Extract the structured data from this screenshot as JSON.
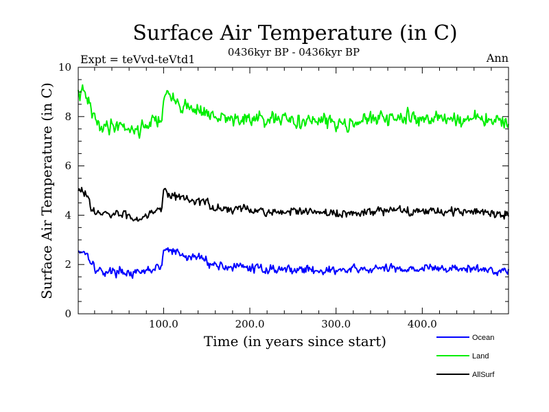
{
  "chart_data": {
    "type": "line",
    "title": "Surface Air Temperature (in C)",
    "subtitle": "0436kyr BP - 0436kyr BP",
    "experiment_label": "Expt = teVvd-teVtd1",
    "period_label": "Ann",
    "xlabel": "Time (in years since start)",
    "ylabel": "Surface Air Temperature (in C)",
    "xlim": [
      1,
      500
    ],
    "ylim": [
      0,
      10
    ],
    "x_ticks": [
      100,
      200,
      300,
      400
    ],
    "x_tick_labels": [
      "100.0",
      "200.0",
      "300.0",
      "400.0"
    ],
    "y_ticks": [
      0,
      2,
      4,
      6,
      8,
      10
    ],
    "y_tick_labels": [
      "0",
      "2",
      "4",
      "6",
      "8",
      "10"
    ],
    "grid": false,
    "legend_position": "bottom-right",
    "series": [
      {
        "name": "Ocean",
        "color": "#0000ff",
        "anchors": [
          [
            1,
            2.55
          ],
          [
            8,
            2.55
          ],
          [
            14,
            2.3
          ],
          [
            22,
            1.75
          ],
          [
            35,
            1.7
          ],
          [
            50,
            1.75
          ],
          [
            62,
            1.65
          ],
          [
            70,
            1.6
          ],
          [
            85,
            1.8
          ],
          [
            98,
            1.9
          ],
          [
            100,
            2.6
          ],
          [
            110,
            2.55
          ],
          [
            125,
            2.3
          ],
          [
            140,
            2.3
          ],
          [
            150,
            2.2
          ],
          [
            155,
            2.0
          ],
          [
            180,
            1.9
          ],
          [
            220,
            1.82
          ],
          [
            260,
            1.8
          ],
          [
            300,
            1.75
          ],
          [
            350,
            1.82
          ],
          [
            400,
            1.85
          ],
          [
            450,
            1.82
          ],
          [
            500,
            1.75
          ]
        ],
        "noise": 0.12,
        "seed": 17
      },
      {
        "name": "Land",
        "color": "#00ee00",
        "anchors": [
          [
            1,
            8.9
          ],
          [
            8,
            8.95
          ],
          [
            14,
            8.5
          ],
          [
            22,
            7.7
          ],
          [
            35,
            7.6
          ],
          [
            50,
            7.7
          ],
          [
            62,
            7.5
          ],
          [
            70,
            7.45
          ],
          [
            85,
            7.8
          ],
          [
            98,
            7.9
          ],
          [
            100,
            8.9
          ],
          [
            110,
            8.7
          ],
          [
            125,
            8.4
          ],
          [
            140,
            8.3
          ],
          [
            150,
            8.2
          ],
          [
            155,
            7.95
          ],
          [
            180,
            7.9
          ],
          [
            220,
            7.85
          ],
          [
            260,
            7.85
          ],
          [
            300,
            7.75
          ],
          [
            350,
            7.9
          ],
          [
            400,
            7.95
          ],
          [
            450,
            7.9
          ],
          [
            500,
            7.8
          ]
        ],
        "noise": 0.2,
        "seed": 41
      },
      {
        "name": "AllSurf",
        "color": "#000000",
        "anchors": [
          [
            1,
            4.95
          ],
          [
            8,
            4.95
          ],
          [
            14,
            4.6
          ],
          [
            22,
            4.05
          ],
          [
            35,
            4.0
          ],
          [
            50,
            4.05
          ],
          [
            62,
            3.95
          ],
          [
            70,
            3.85
          ],
          [
            85,
            4.15
          ],
          [
            98,
            4.3
          ],
          [
            100,
            5.05
          ],
          [
            110,
            4.85
          ],
          [
            125,
            4.65
          ],
          [
            140,
            4.6
          ],
          [
            150,
            4.5
          ],
          [
            155,
            4.3
          ],
          [
            180,
            4.25
          ],
          [
            220,
            4.15
          ],
          [
            260,
            4.12
          ],
          [
            300,
            4.05
          ],
          [
            350,
            4.15
          ],
          [
            400,
            4.2
          ],
          [
            450,
            4.15
          ],
          [
            500,
            4.05
          ]
        ],
        "noise": 0.12,
        "seed": 83
      }
    ]
  }
}
